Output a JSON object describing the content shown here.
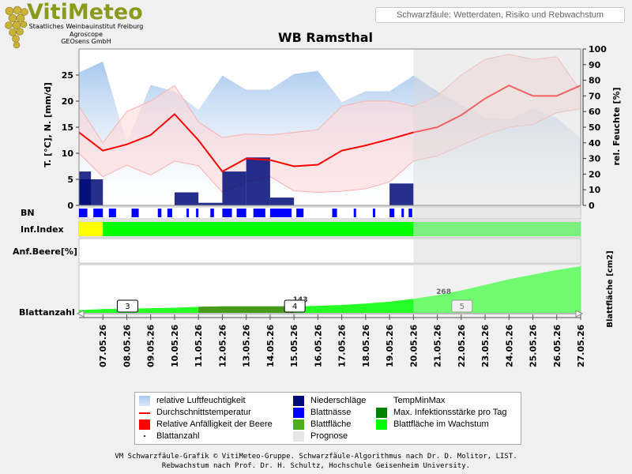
{
  "header": {
    "logo_name": "VitiMeteo",
    "logo_lines": [
      "Staatliches Weinbauinstitut Freiburg",
      "Agroscope",
      "GEOsens GmbH"
    ],
    "subtitle": "Schwarzfäule: Wetterdaten, Risiko und Rebwachstum"
  },
  "colors": {
    "humidity": "#a8c8ee",
    "precip": "#000a78",
    "temp_mean": "#ff0000",
    "temp_band": "#ffd8d8",
    "leaf_wet": "#0000ff",
    "infection_max": "#008000",
    "leaf_area": "#00e000",
    "leaf_area_growth": "#00ff00",
    "forecast": "#e6e6e6",
    "yellow": "#ffff00"
  },
  "chart_data": {
    "type": "line",
    "title": "WB Ramsthal",
    "ylabel_left": "T. [°C], N. [mm/d]",
    "ylabel_right": "rel. Feuchte [%]",
    "ylabel_leaf": "Blattfläche [cm2]",
    "ylim_left": [
      0,
      30
    ],
    "yticks_left": [
      0,
      5,
      10,
      15,
      20,
      25
    ],
    "ylim_right": [
      0,
      100
    ],
    "yticks_right": [
      0,
      10,
      20,
      30,
      40,
      50,
      60,
      70,
      80,
      90,
      100
    ],
    "x_dates": [
      "06.05.26",
      "07.05.26",
      "08.05.26",
      "09.05.26",
      "10.05.26",
      "11.05.26",
      "12.05.26",
      "13.05.26",
      "14.05.26",
      "15.05.26",
      "16.05.26",
      "17.05.26",
      "18.05.26",
      "19.05.26",
      "20.05.26",
      "21.05.26",
      "22.05.26",
      "23.05.26",
      "24.05.26",
      "25.05.26",
      "26.05.26",
      "27.05.26"
    ],
    "x_labels": [
      "07.05.26",
      "08.05.26",
      "09.05.26",
      "10.05.26",
      "11.05.26",
      "12.05.26",
      "13.05.26",
      "14.05.26",
      "15.05.26",
      "16.05.26",
      "17.05.26",
      "18.05.26",
      "19.05.26",
      "20.05.26",
      "21.05.26",
      "22.05.26",
      "23.05.26",
      "24.05.26",
      "25.05.26",
      "26.05.26",
      "27.05.26"
    ],
    "forecast_start": "20.05.26",
    "humidity": [
      85,
      92,
      40,
      77,
      73,
      61,
      83,
      74,
      74,
      84,
      86,
      66,
      73,
      73,
      83,
      73,
      64,
      56,
      55,
      62,
      56,
      43
    ],
    "temp_mean": [
      14.0,
      10.5,
      11.7,
      13.5,
      17.5,
      12.5,
      6.5,
      9.0,
      8.7,
      7.5,
      7.8,
      10.5,
      11.5,
      12.7,
      14.0,
      15.0,
      17.3,
      20.5,
      23.0,
      21.0,
      21.0,
      23.0
    ],
    "temp_min": [
      10.0,
      5.5,
      7.7,
      5.8,
      8.5,
      7.6,
      2.5,
      4.5,
      5.5,
      2.8,
      2.5,
      2.7,
      3.2,
      4.5,
      8.5,
      9.5,
      11.5,
      13.5,
      15.0,
      15.5,
      17.8,
      18.5
    ],
    "temp_max": [
      19.0,
      12.0,
      18.0,
      20.0,
      23.0,
      16.0,
      13.0,
      13.7,
      13.5,
      14.0,
      14.5,
      19.0,
      20.0,
      20.0,
      19.0,
      21.0,
      25.0,
      28.0,
      29.0,
      28.0,
      28.5,
      22.0
    ],
    "precip_bars": [
      {
        "from": "06.05.26",
        "to": "06.05.26",
        "value": 6.5
      },
      {
        "from": "06.05.26",
        "to": "07.05.26",
        "value": 5.0
      },
      {
        "from": "10.05.26",
        "to": "11.05.26",
        "value": 2.5
      },
      {
        "from": "11.05.26",
        "to": "12.05.26",
        "value": 0.5
      },
      {
        "from": "12.05.26",
        "to": "13.05.26",
        "value": 6.5
      },
      {
        "from": "13.05.26",
        "to": "14.05.26",
        "value": 9.2
      },
      {
        "from": "14.05.26",
        "to": "15.05.26",
        "value": 1.5
      },
      {
        "from": "19.05.26",
        "to": "20.05.26",
        "value": 4.2
      }
    ],
    "inf_index": [
      {
        "from": "06.05.26",
        "to": "07.05.26",
        "level": "low"
      },
      {
        "from": "07.05.26",
        "to": "20.05.26",
        "level": "high"
      },
      {
        "from": "20.05.26",
        "to": "27.05.26",
        "level": "high-forecast"
      }
    ],
    "leaf_area": [
      6,
      8,
      9,
      10,
      11,
      13,
      14,
      14,
      14,
      14,
      15,
      17,
      20,
      24,
      30,
      38,
      48,
      60,
      72,
      82,
      92,
      100
    ],
    "leaf_area_callouts": [
      {
        "at": "15.05.26",
        "text": "143"
      },
      {
        "at": "21.05.26",
        "text": "268"
      }
    ],
    "leaf_count_markers": [
      {
        "at": "08.05.26",
        "text": "3"
      },
      {
        "at": "15.05.26",
        "text": "4"
      },
      {
        "at": "22.05.26",
        "text": "5"
      }
    ]
  },
  "rows": {
    "bn": "BN",
    "inf_index": "Inf.Index",
    "anf_beere": "Anf.Beere[%]",
    "blattanzahl": "Blattanzahl"
  },
  "legend": {
    "items": [
      {
        "label": "relative Luftfeuchtigkeit"
      },
      {
        "label": "Niederschläge"
      },
      {
        "label": "TempMinMax"
      },
      {
        "label": "Durchschnittstemperatur"
      },
      {
        "label": "Blattnässe"
      },
      {
        "label": "Max. Infektionsstärke pro Tag"
      },
      {
        "label": "Relative Anfälligkeit der Beere"
      },
      {
        "label": "Blattfläche"
      },
      {
        "label": "Blattfläche im Wachstum"
      },
      {
        "label": "Blattanzahl"
      },
      {
        "label": "Prognose"
      }
    ]
  },
  "footer": {
    "line1": "VM Schwarzfäule-Grafik © VitiMeteo-Gruppe. Schwarzfäule-Algorithmus nach Dr. D. Molitor, LIST.",
    "line2": "Rebwachstum nach Prof. Dr. H. Schultz, Hochschule Geisenheim University."
  }
}
